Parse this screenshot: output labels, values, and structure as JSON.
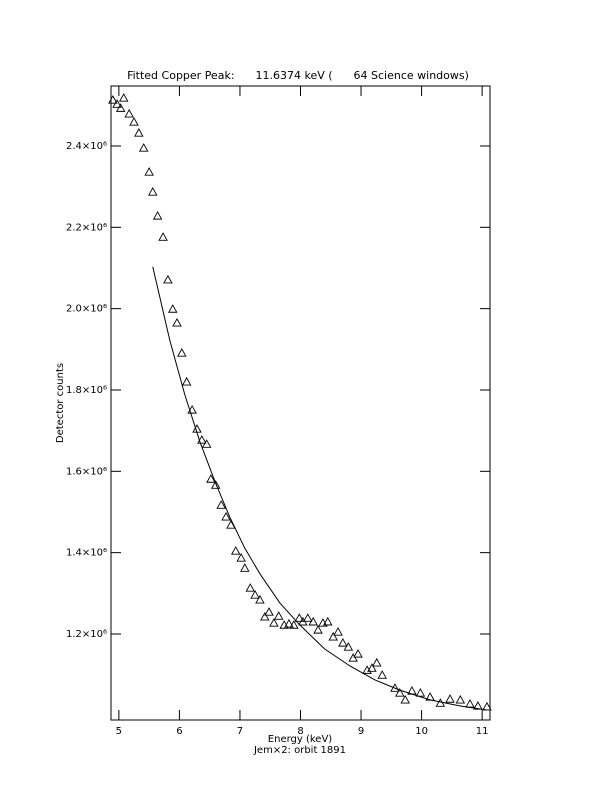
{
  "chart_data": {
    "type": "scatter",
    "title": "Fitted Copper Peak:      11.6374 keV (      64 Science windows)",
    "x_label": "Energy (keV)",
    "subtitle": "Jem×2: orbit 1891",
    "y_label": "Detector counts",
    "color": "#000000",
    "xlim": [
      4.87,
      11.13
    ],
    "ylim": [
      988500,
      2547500
    ],
    "xticks": [
      5,
      6,
      7,
      8,
      9,
      10,
      11
    ],
    "yticks": [
      {
        "value": 1200000,
        "label": "1.2×10⁶"
      },
      {
        "value": 1400000,
        "label": "1.4×10⁶"
      },
      {
        "value": 1600000,
        "label": "1.6×10⁶"
      },
      {
        "value": 1800000,
        "label": "1.8×10⁶"
      },
      {
        "value": 2000000,
        "label": "2.0×10⁶"
      },
      {
        "value": 2200000,
        "label": "2.2×10⁶"
      },
      {
        "value": 2400000,
        "label": "2.4×10⁶"
      }
    ],
    "x": [
      4.9,
      4.97,
      5.03,
      5.08,
      5.17,
      5.25,
      5.33,
      5.41,
      5.5,
      5.56,
      5.64,
      5.73,
      5.81,
      5.89,
      5.96,
      6.04,
      6.12,
      6.21,
      6.29,
      6.37,
      6.45,
      6.52,
      6.6,
      6.69,
      6.77,
      6.85,
      6.93,
      7.02,
      7.08,
      7.17,
      7.25,
      7.33,
      7.41,
      7.48,
      7.56,
      7.64,
      7.73,
      7.81,
      7.89,
      7.98,
      8.04,
      8.12,
      8.21,
      8.29,
      8.37,
      8.45,
      8.54,
      8.62,
      8.7,
      8.79,
      8.87,
      8.95,
      9.1,
      9.18,
      9.26,
      9.35,
      9.56,
      9.64,
      9.73,
      9.84,
      9.98,
      10.14,
      10.31,
      10.47,
      10.64,
      10.8,
      10.93,
      11.08
    ],
    "values": [
      2513000,
      2503000,
      2493000,
      2518000,
      2479000,
      2459000,
      2432000,
      2395000,
      2336000,
      2287000,
      2228000,
      2176000,
      2071000,
      1999000,
      1965000,
      1891000,
      1820000,
      1751000,
      1704000,
      1677000,
      1667000,
      1581000,
      1566000,
      1517000,
      1488000,
      1468000,
      1404000,
      1387000,
      1362000,
      1313000,
      1296000,
      1284000,
      1242000,
      1254000,
      1227000,
      1244000,
      1222000,
      1225000,
      1222000,
      1239000,
      1230000,
      1239000,
      1230000,
      1210000,
      1227000,
      1230000,
      1193000,
      1205000,
      1178000,
      1168000,
      1141000,
      1151000,
      1111000,
      1116000,
      1129000,
      1099000,
      1067000,
      1055000,
      1038000,
      1060000,
      1055000,
      1045000,
      1030000,
      1040000,
      1038000,
      1028000,
      1023000,
      1021000
    ],
    "fit": {
      "x": [
        5.56,
        5.84,
        6.09,
        6.34,
        6.59,
        6.83,
        7.08,
        7.33,
        7.66,
        7.99,
        8.4,
        8.82,
        9.23,
        9.64,
        10.14,
        10.64,
        11.08
      ],
      "values": [
        2103000,
        1923000,
        1788000,
        1672000,
        1574000,
        1488000,
        1411000,
        1348000,
        1276000,
        1222000,
        1163000,
        1121000,
        1087000,
        1062000,
        1038000,
        1023000,
        1013000
      ]
    }
  }
}
